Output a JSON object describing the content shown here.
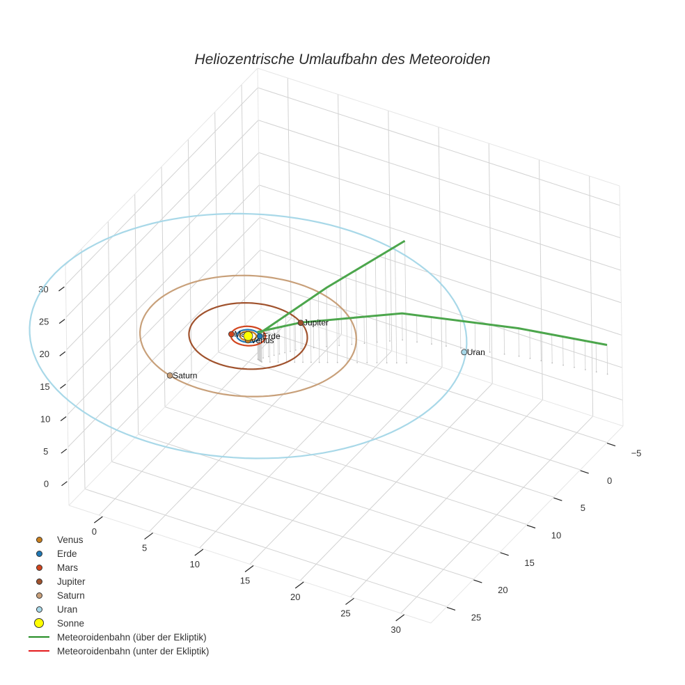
{
  "chart_data": {
    "type": "scatter3d",
    "title": "Heliozentrische Umlaufbahn des Meteoroiden",
    "xlabel": "",
    "ylabel": "",
    "zlabel": "",
    "axes": {
      "x": {
        "ticks": [
          0,
          5,
          10,
          15,
          20,
          25,
          30
        ],
        "range": [
          -3,
          33
        ]
      },
      "y": {
        "ticks": [
          -5,
          0,
          5,
          10,
          15,
          20,
          25
        ],
        "range": [
          -8,
          28
        ]
      },
      "z": {
        "ticks": [
          0,
          5,
          10,
          15,
          20,
          25,
          30
        ],
        "range": [
          -4,
          33
        ]
      }
    },
    "grid": true,
    "legend_position": "bottom-left",
    "series": [
      {
        "name": "Venus",
        "kind": "orbit+marker",
        "color": "#c87f1e",
        "orbit_radius": 0.72,
        "marker": {
          "x": 0.3,
          "y": 0.6,
          "z": 0
        }
      },
      {
        "name": "Erde",
        "kind": "orbit+marker",
        "color": "#1f77b4",
        "orbit_radius": 1.0,
        "marker": {
          "x": 0.9,
          "y": -0.5,
          "z": 0
        }
      },
      {
        "name": "Mars",
        "kind": "orbit+marker",
        "color": "#d2451e",
        "orbit_radius": 1.52,
        "marker": {
          "x": -1.4,
          "y": 0.5,
          "z": 0
        }
      },
      {
        "name": "Jupiter",
        "kind": "orbit+marker",
        "color": "#a0522d",
        "orbit_radius": 5.2,
        "marker": {
          "x": 3.0,
          "y": -4.2,
          "z": 0
        }
      },
      {
        "name": "Saturn",
        "kind": "orbit+marker",
        "color": "#c8a07a",
        "orbit_radius": 9.5,
        "marker": {
          "x": -3.0,
          "y": 9.0,
          "z": 0
        }
      },
      {
        "name": "Uran",
        "kind": "orbit+marker",
        "color": "#a8d8e8",
        "orbit_radius": 19.2,
        "marker": {
          "x": 17.5,
          "y": -7.5,
          "z": 0
        }
      },
      {
        "name": "Sonne",
        "kind": "marker",
        "color": "#ffff00",
        "marker": {
          "x": 0,
          "y": 0,
          "z": 0
        }
      },
      {
        "name": "Meteoroidenbahn (über der Ekliptik)",
        "kind": "line",
        "color": "#228b22",
        "points": [
          [
            12.0,
            -7.0,
            14.8
          ],
          [
            6.0,
            -3.5,
            7.5
          ],
          [
            1.0,
            -0.6,
            0.6
          ],
          [
            0.5,
            -0.8,
            0.2
          ],
          [
            3.0,
            -4.2,
            0.05
          ],
          [
            10.0,
            -10.0,
            0.1
          ],
          [
            20.0,
            -13.0,
            0.3
          ],
          [
            28.0,
            -14.5,
            0.5
          ]
        ]
      },
      {
        "name": "Meteoroidenbahn (unter der Ekliptik)",
        "kind": "line",
        "color": "#e41a1c",
        "points": []
      }
    ]
  },
  "title": "Heliozentrische Umlaufbahn des Meteoroiden",
  "labels": {
    "venus": "Venus",
    "erde": "Erde",
    "mars": "Mars",
    "jupiter": "Jupiter",
    "saturn": "Saturn",
    "uran": "Uran"
  },
  "legend": [
    {
      "label": "Venus",
      "type": "dot",
      "color": "#c87f1e",
      "size": 9
    },
    {
      "label": "Erde",
      "type": "dot",
      "color": "#1f77b4",
      "size": 9
    },
    {
      "label": "Mars",
      "type": "dot",
      "color": "#d2451e",
      "size": 9
    },
    {
      "label": "Jupiter",
      "type": "dot",
      "color": "#a0522d",
      "size": 9
    },
    {
      "label": "Saturn",
      "type": "dot",
      "color": "#c8a07a",
      "size": 9
    },
    {
      "label": "Uran",
      "type": "dot",
      "color": "#a8d8e8",
      "size": 9
    },
    {
      "label": "Sonne",
      "type": "dot",
      "color": "#ffff00",
      "size": 14
    },
    {
      "label": "Meteoroidenbahn (über der Ekliptik)",
      "type": "line",
      "color": "#228b22"
    },
    {
      "label": "Meteoroidenbahn (unter der Ekliptik)",
      "type": "line",
      "color": "#e41a1c"
    }
  ]
}
